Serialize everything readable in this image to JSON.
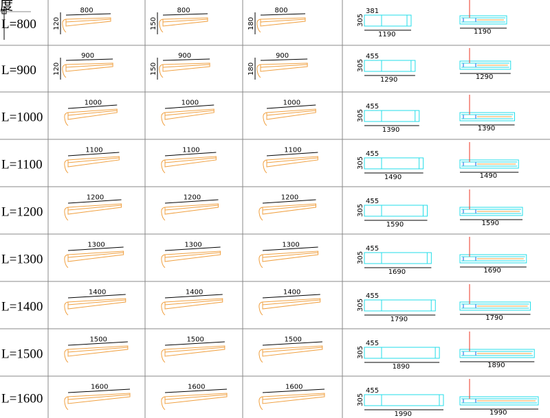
{
  "header_fragment": "度",
  "colors": {
    "grid": "#888888",
    "beam": "#f0a040",
    "plan": "#22dde8",
    "red": "#ee3322",
    "blue": "#2255dd",
    "dim": "#000000"
  },
  "rows": [
    {
      "label": "L=800",
      "length": "800",
      "heights": [
        "120",
        "150",
        "180"
      ],
      "plan_left": "381",
      "plan_height": "305",
      "plan_width": "1190"
    },
    {
      "label": "L=900",
      "length": "900",
      "heights": [
        "120",
        "150",
        "180"
      ],
      "plan_left": "455",
      "plan_height": "305",
      "plan_width": "1290"
    },
    {
      "label": "L=1000",
      "length": "1000",
      "heights": [],
      "plan_left": "455",
      "plan_height": "305",
      "plan_width": "1390"
    },
    {
      "label": "L=1100",
      "length": "1100",
      "heights": [],
      "plan_left": "455",
      "plan_height": "305",
      "plan_width": "1490"
    },
    {
      "label": "L=1200",
      "length": "1200",
      "heights": [],
      "plan_left": "455",
      "plan_height": "305",
      "plan_width": "1590"
    },
    {
      "label": "L=1300",
      "length": "1300",
      "heights": [],
      "plan_left": "455",
      "plan_height": "305",
      "plan_width": "1690"
    },
    {
      "label": "L=1400",
      "length": "1400",
      "heights": [],
      "plan_left": "455",
      "plan_height": "305",
      "plan_width": "1790"
    },
    {
      "label": "L=1500",
      "length": "1500",
      "heights": [],
      "plan_left": "455",
      "plan_height": "305",
      "plan_width": "1890"
    },
    {
      "label": "L=1600",
      "length": "1600",
      "heights": [],
      "plan_left": "455",
      "plan_height": "305",
      "plan_width": "1990"
    }
  ]
}
